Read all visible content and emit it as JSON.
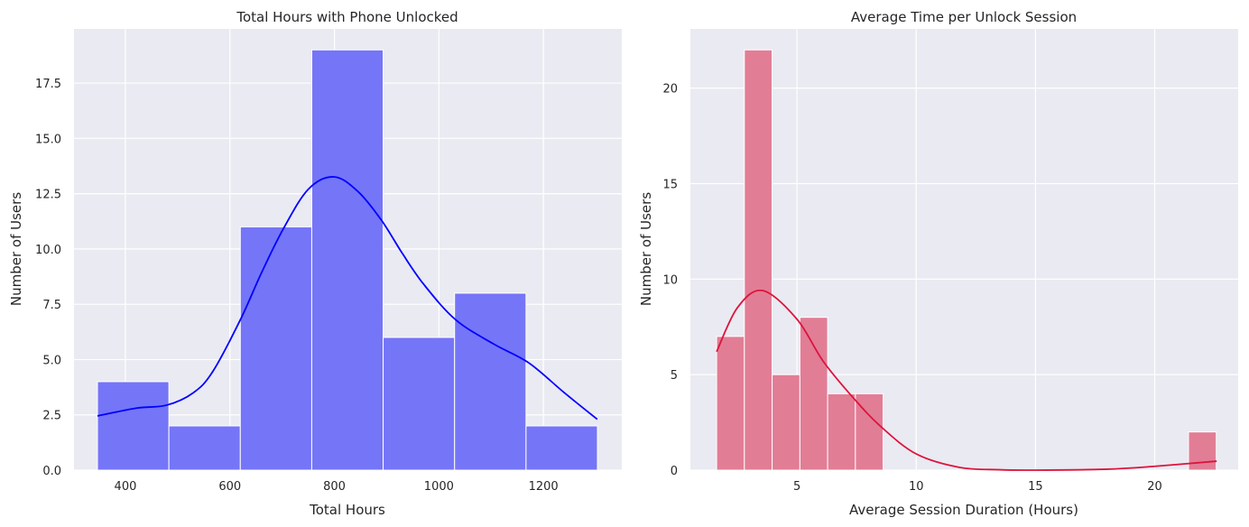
{
  "chart_data": [
    {
      "type": "histogram",
      "title": "Total Hours with Phone Unlocked",
      "xlabel": "Total Hours",
      "ylabel": "Number of Users",
      "xlim": [
        301.6,
        1350
      ],
      "ylim": [
        0,
        19.95
      ],
      "xticks": [
        400,
        600,
        800,
        1000,
        1200
      ],
      "xtick_labels": [
        "400",
        "600",
        "800",
        "1000",
        "1200"
      ],
      "yticks": [
        0,
        2.5,
        5,
        7.5,
        10,
        12.5,
        15,
        17.5
      ],
      "ytick_labels": [
        "0.0",
        "2.5",
        "5.0",
        "7.5",
        "10.0",
        "12.5",
        "15.0",
        "17.5"
      ],
      "bin_edges": [
        346.5,
        483.2,
        619.9,
        756.6,
        893.3,
        1030.0,
        1166.7,
        1303.4
      ],
      "counts": [
        4,
        2,
        11,
        19,
        6,
        8,
        2
      ],
      "bar_color": "#7575f7",
      "kde_color": "#0000ff",
      "kde": {
        "x": [
          346.5,
          420,
          479,
          530,
          567,
          620,
          660,
          702,
          750,
          799,
          845,
          890,
          930,
          971,
          1032,
          1105,
          1172,
          1240,
          1303
        ],
        "y": [
          2.45,
          2.8,
          2.94,
          3.5,
          4.45,
          6.8,
          8.9,
          10.9,
          12.7,
          13.26,
          12.6,
          11.3,
          9.8,
          8.4,
          6.8,
          5.7,
          4.85,
          3.5,
          2.3
        ]
      },
      "grid": true
    },
    {
      "type": "histogram",
      "title": "Average Time per Unlock Session",
      "xlabel": "Average Session Duration (Hours)",
      "ylabel": "Number of Users",
      "xlim": [
        0.53,
        23.5
      ],
      "ylim": [
        0,
        23.1
      ],
      "xticks": [
        5,
        10,
        15,
        20
      ],
      "xtick_labels": [
        "5",
        "10",
        "15",
        "20"
      ],
      "yticks": [
        0,
        5,
        10,
        15,
        20
      ],
      "ytick_labels": [
        "0",
        "5",
        "10",
        "15",
        "20"
      ],
      "bin_edges": [
        1.63,
        2.794,
        3.958,
        5.122,
        6.286,
        7.45,
        8.614,
        9.778,
        10.942,
        12.106,
        13.27,
        14.434,
        15.598,
        16.762,
        17.926,
        19.09,
        20.254,
        21.418,
        22.582
      ],
      "counts": [
        7,
        22,
        5,
        8,
        4,
        4,
        0,
        0,
        0,
        0,
        0,
        0,
        0,
        0,
        0,
        0,
        0,
        2
      ],
      "bar_color": "#e27d96",
      "kde_color": "#dc143c",
      "kde": {
        "x": [
          1.63,
          2.5,
          3.56,
          5.0,
          6.1,
          7.35,
          8.5,
          10.0,
          11.8,
          13.5,
          15,
          18,
          20,
          22.6
        ],
        "y": [
          6.2,
          8.5,
          9.4,
          7.9,
          5.7,
          3.8,
          2.3,
          0.85,
          0.15,
          0.02,
          0.0,
          0.05,
          0.2,
          0.47
        ]
      },
      "grid": true
    }
  ]
}
